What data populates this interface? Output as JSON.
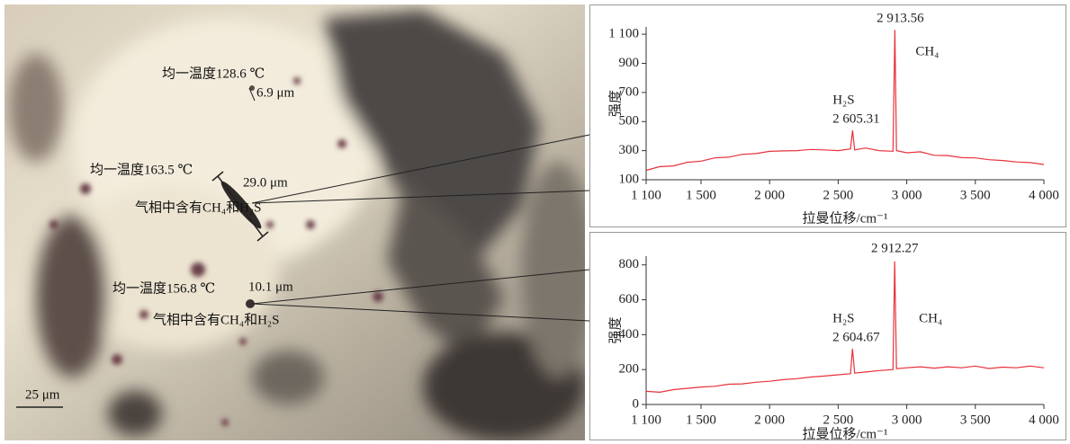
{
  "micrograph": {
    "annotations": [
      "均一温度128.6 ℃",
      "6.9 μm",
      "均一温度163.5 ℃",
      "29.0 μm",
      "气相中含有CH₄和H₂S",
      "均一温度156.8 ℃",
      "10.1 μm",
      "气相中含有CH₄和H₂S"
    ],
    "scale_bar": "25 μm"
  },
  "chart_data": [
    {
      "type": "line",
      "color": "#e8323c",
      "x_label": "拉曼位移/cm⁻¹",
      "y_label": "强度",
      "x": [
        1100,
        1200,
        1300,
        1400,
        1500,
        1600,
        1700,
        1800,
        1900,
        2000,
        2100,
        2200,
        2300,
        2400,
        2500,
        2590,
        2605.31,
        2620,
        2700,
        2800,
        2900,
        2913.56,
        2925,
        3000,
        3100,
        3200,
        3300,
        3400,
        3500,
        3600,
        3700,
        3800,
        3900,
        4000
      ],
      "values": [
        165,
        190,
        195,
        220,
        228,
        250,
        255,
        275,
        280,
        295,
        298,
        300,
        308,
        305,
        300,
        312,
        440,
        305,
        318,
        300,
        296,
        1130,
        300,
        285,
        292,
        268,
        266,
        252,
        250,
        238,
        232,
        222,
        218,
        205
      ],
      "peaks": [
        {
          "x": 2605.31,
          "label": "2 605.31",
          "name": "H₂S"
        },
        {
          "x": 2913.56,
          "label": "2 913.56",
          "name": "CH₄"
        }
      ],
      "xlim": [
        1100,
        4000
      ],
      "xticks": [
        {
          "value": 1100,
          "label": "1 100"
        },
        {
          "value": 1500,
          "label": "1 500"
        },
        {
          "value": 2000,
          "label": "2 000"
        },
        {
          "value": 2500,
          "label": "2 500"
        },
        {
          "value": 3000,
          "label": "3 000"
        },
        {
          "value": 3500,
          "label": "3 500"
        },
        {
          "value": 4000,
          "label": "4 000"
        }
      ],
      "ylim": [
        100,
        1150
      ],
      "yticks": [
        100,
        300,
        500,
        700,
        900,
        {
          "value": 1100,
          "label": "1 100"
        }
      ]
    },
    {
      "type": "line",
      "color": "#e8323c",
      "x_label": "拉曼位移/cm⁻¹",
      "y_label": "强度",
      "x": [
        1100,
        1200,
        1300,
        1400,
        1500,
        1600,
        1700,
        1800,
        1900,
        2000,
        2100,
        2200,
        2300,
        2400,
        2500,
        2590,
        2604.67,
        2620,
        2700,
        2800,
        2900,
        2912.27,
        2925,
        3000,
        3100,
        3200,
        3300,
        3400,
        3500,
        3600,
        3700,
        3800,
        3900,
        4000
      ],
      "values": [
        75,
        70,
        85,
        92,
        100,
        104,
        116,
        118,
        127,
        133,
        142,
        148,
        157,
        163,
        170,
        176,
        320,
        180,
        186,
        194,
        200,
        820,
        205,
        210,
        216,
        208,
        216,
        210,
        220,
        206,
        214,
        210,
        220,
        210
      ],
      "peaks": [
        {
          "x": 2604.67,
          "label": "2 604.67",
          "name": "H₂S"
        },
        {
          "x": 2912.27,
          "label": "2 912.27",
          "name": "CH₄"
        }
      ],
      "xlim": [
        1100,
        4000
      ],
      "xticks": [
        {
          "value": 1100,
          "label": "1 100"
        },
        {
          "value": 1500,
          "label": "1 500"
        },
        {
          "value": 2000,
          "label": "2 000"
        },
        {
          "value": 2500,
          "label": "2 500"
        },
        {
          "value": 3000,
          "label": "3 000"
        },
        {
          "value": 3500,
          "label": "3 500"
        },
        {
          "value": 4000,
          "label": "4 000"
        }
      ],
      "ylim": [
        0,
        850
      ],
      "yticks": [
        0,
        200,
        400,
        600,
        800
      ]
    }
  ]
}
